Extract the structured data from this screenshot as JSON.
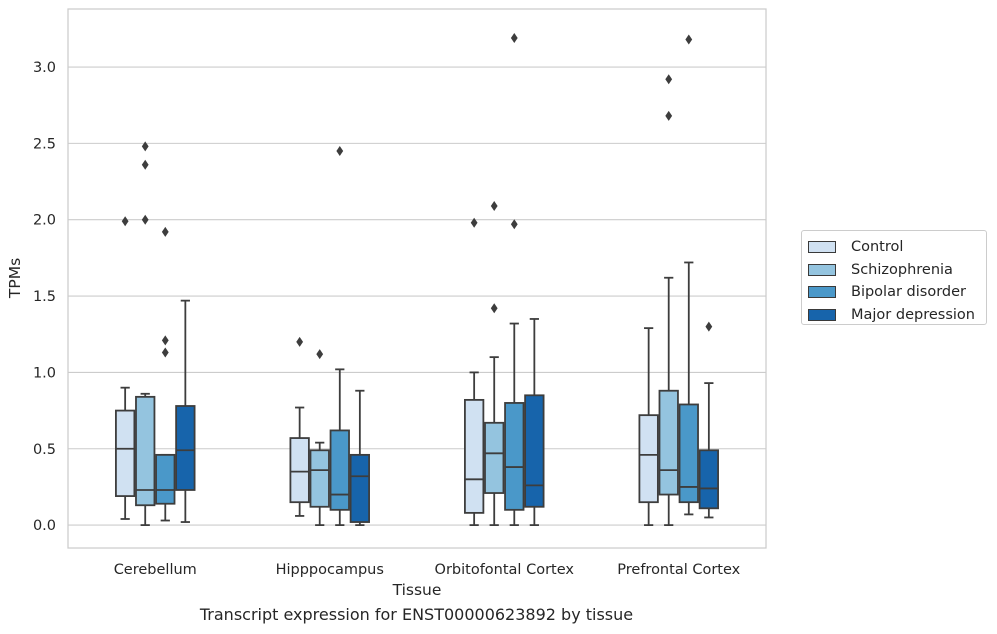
{
  "chart_data": {
    "type": "boxplot",
    "title": "Transcript expression for ENST00000623892 by tissue",
    "xlabel": "Tissue",
    "ylabel": "TPMs",
    "categories": [
      "Cerebellum",
      "Hipppocampus",
      "Orbitofontal Cortex",
      "Prefrontal Cortex"
    ],
    "ylim": [
      -0.15,
      3.38
    ],
    "yticks": [
      0.0,
      0.5,
      1.0,
      1.5,
      2.0,
      2.5,
      3.0
    ],
    "ytick_labels": [
      "0.0",
      "0.5",
      "1.0",
      "1.5",
      "2.0",
      "2.5",
      "3.0"
    ],
    "grid": true,
    "legend_position": "center-right outside",
    "series": [
      {
        "name": "Control",
        "color": "#d0e1f2",
        "boxes": [
          {
            "whislo": 0.04,
            "q1": 0.19,
            "med": 0.5,
            "q3": 0.75,
            "whishi": 0.9,
            "fliers": [
              1.99
            ]
          },
          {
            "whislo": 0.06,
            "q1": 0.15,
            "med": 0.35,
            "q3": 0.57,
            "whishi": 0.77,
            "fliers": [
              1.2
            ]
          },
          {
            "whislo": 0.0,
            "q1": 0.08,
            "med": 0.3,
            "q3": 0.82,
            "whishi": 1.0,
            "fliers": [
              1.98
            ]
          },
          {
            "whislo": 0.0,
            "q1": 0.15,
            "med": 0.46,
            "q3": 0.72,
            "whishi": 1.29,
            "fliers": []
          }
        ]
      },
      {
        "name": "Schizophrenia",
        "color": "#94c4df",
        "boxes": [
          {
            "whislo": 0.0,
            "q1": 0.13,
            "med": 0.23,
            "q3": 0.84,
            "whishi": 0.86,
            "fliers": [
              2.0,
              2.36,
              2.48
            ]
          },
          {
            "whislo": 0.0,
            "q1": 0.12,
            "med": 0.36,
            "q3": 0.49,
            "whishi": 0.54,
            "fliers": [
              1.12
            ]
          },
          {
            "whislo": 0.0,
            "q1": 0.21,
            "med": 0.47,
            "q3": 0.67,
            "whishi": 1.1,
            "fliers": [
              1.42,
              2.09
            ]
          },
          {
            "whislo": 0.0,
            "q1": 0.2,
            "med": 0.36,
            "q3": 0.88,
            "whishi": 1.62,
            "fliers": [
              2.68,
              2.92
            ]
          }
        ]
      },
      {
        "name": "Bipolar disorder",
        "color": "#4a98c9",
        "boxes": [
          {
            "whislo": 0.03,
            "q1": 0.14,
            "med": 0.23,
            "q3": 0.46,
            "whishi": 0.46,
            "fliers": [
              1.13,
              1.21,
              1.92
            ]
          },
          {
            "whislo": 0.0,
            "q1": 0.1,
            "med": 0.2,
            "q3": 0.62,
            "whishi": 1.02,
            "fliers": [
              2.45
            ]
          },
          {
            "whislo": 0.0,
            "q1": 0.1,
            "med": 0.38,
            "q3": 0.8,
            "whishi": 1.32,
            "fliers": [
              1.97,
              3.19
            ]
          },
          {
            "whislo": 0.07,
            "q1": 0.15,
            "med": 0.25,
            "q3": 0.79,
            "whishi": 1.72,
            "fliers": [
              3.18
            ]
          }
        ]
      },
      {
        "name": "Major depression",
        "color": "#1764ab",
        "boxes": [
          {
            "whislo": 0.02,
            "q1": 0.23,
            "med": 0.49,
            "q3": 0.78,
            "whishi": 1.47,
            "fliers": []
          },
          {
            "whislo": 0.0,
            "q1": 0.02,
            "med": 0.32,
            "q3": 0.46,
            "whishi": 0.88,
            "fliers": []
          },
          {
            "whislo": 0.0,
            "q1": 0.12,
            "med": 0.26,
            "q3": 0.85,
            "whishi": 1.35,
            "fliers": []
          },
          {
            "whislo": 0.05,
            "q1": 0.11,
            "med": 0.24,
            "q3": 0.49,
            "whishi": 0.93,
            "fliers": [
              1.3
            ]
          }
        ]
      }
    ]
  }
}
